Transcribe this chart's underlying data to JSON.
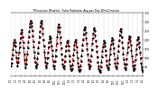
{
  "title": "Milwaukee Weather  Solar Radiation Avg per Day W/m2/minute",
  "line_color": "#cc0000",
  "marker_color": "#000000",
  "bg_color": "#ffffff",
  "grid_color": "#999999",
  "ylim": [
    0,
    350
  ],
  "ytick_values": [
    50,
    100,
    150,
    200,
    250,
    300,
    350
  ],
  "ytick_labels": [
    "50",
    "100",
    "150",
    "200",
    "250",
    "300",
    "350"
  ],
  "values": [
    55,
    70,
    95,
    115,
    145,
    170,
    185,
    200,
    185,
    165,
    130,
    100,
    75,
    55,
    75,
    100,
    130,
    160,
    185,
    210,
    235,
    255,
    240,
    215,
    185,
    155,
    120,
    90,
    65,
    45,
    65,
    90,
    120,
    155,
    185,
    215,
    245,
    270,
    290,
    305,
    295,
    275,
    250,
    220,
    190,
    160,
    130,
    100,
    75,
    55,
    45,
    65,
    95,
    125,
    155,
    185,
    215,
    245,
    275,
    295,
    305,
    290,
    265,
    235,
    200,
    165,
    130,
    100,
    75,
    55,
    45,
    70,
    100,
    130,
    160,
    185,
    205,
    220,
    210,
    190,
    165,
    140,
    110,
    80,
    55,
    40,
    55,
    80,
    110,
    145,
    180,
    215,
    245,
    270,
    285,
    270,
    245,
    215,
    185,
    155,
    120,
    90,
    65,
    50,
    40,
    55,
    80,
    110,
    140,
    165,
    185,
    195,
    185,
    165,
    140,
    110,
    80,
    55,
    40,
    30,
    40,
    60,
    85,
    115,
    145,
    170,
    190,
    200,
    185,
    160,
    130,
    100,
    70,
    50,
    35,
    25,
    35,
    55,
    80,
    110,
    140,
    170,
    200,
    230,
    255,
    270,
    260,
    240,
    210,
    180,
    150,
    120,
    90,
    65,
    50,
    40,
    55,
    80,
    110,
    145,
    180,
    210,
    235,
    255,
    265,
    250,
    225,
    195,
    165,
    135,
    105,
    75,
    55,
    40,
    30,
    20,
    30,
    50,
    75,
    105,
    135,
    160,
    180,
    195,
    185,
    165,
    140,
    115,
    85,
    60,
    45,
    35,
    45,
    65,
    90,
    120,
    150,
    175,
    195,
    210,
    200,
    180,
    155,
    125,
    95,
    70,
    50,
    40,
    50,
    70,
    100,
    135,
    165,
    195,
    225,
    250,
    260,
    245,
    215,
    185,
    155,
    120,
    90,
    65,
    45,
    35,
    45,
    65,
    95,
    130,
    160,
    185,
    205,
    220,
    215,
    195,
    170,
    140,
    110,
    80,
    55,
    40,
    30,
    40,
    60,
    90,
    120,
    150,
    175,
    200,
    215,
    205,
    185,
    160,
    130,
    100,
    70,
    50,
    35,
    28
  ],
  "n_xticks": 28,
  "xtick_labels": [
    "1/1",
    "2/1",
    "3/1",
    "4/1",
    "5/1",
    "6/1",
    "7/1",
    "8/1",
    "9/1",
    "10/1",
    "11/1",
    "12/1",
    "1/1",
    "2/1",
    "3/1",
    "4/1",
    "5/1",
    "6/1",
    "7/1",
    "8/1",
    "9/1",
    "10/1",
    "11/1",
    "12/1",
    "1/1",
    "2/1",
    "3/1",
    "4/1"
  ]
}
